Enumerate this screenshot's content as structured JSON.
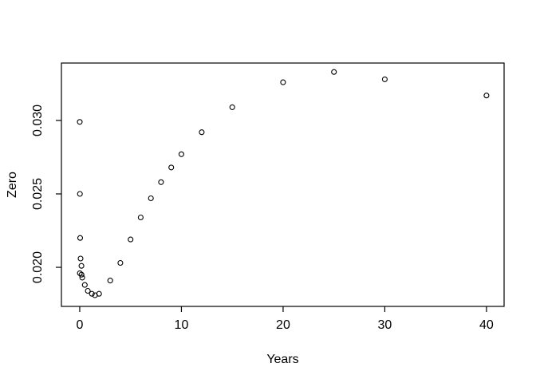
{
  "figure": {
    "background": "#ffffff",
    "foreground": "#000000"
  },
  "chart_data": {
    "type": "scatter",
    "title": "",
    "xlabel": "Years",
    "ylabel": "Zero",
    "marker": "open-circle",
    "grid": false,
    "legend": null,
    "xlim": [
      -1.8,
      41.73
    ],
    "ylim": [
      0.01734,
      0.03391
    ],
    "x_ticks": [
      0,
      10,
      20,
      30,
      40
    ],
    "x_tick_labels": [
      "0",
      "10",
      "20",
      "30",
      "40"
    ],
    "y_ticks": [
      0.02,
      0.025,
      0.03
    ],
    "y_tick_labels": [
      "0.020",
      "0.025",
      "0.030"
    ],
    "points": [
      [
        0.003,
        0.0299
      ],
      [
        0.02,
        0.025
      ],
      [
        0.04,
        0.022
      ],
      [
        0.08,
        0.0206
      ],
      [
        0.17,
        0.0201
      ],
      [
        0.01,
        0.0196
      ],
      [
        0.18,
        0.0195
      ],
      [
        0.25,
        0.0193
      ],
      [
        0.5,
        0.0188
      ],
      [
        0.8,
        0.0184
      ],
      [
        1.2,
        0.0182
      ],
      [
        1.5,
        0.0181
      ],
      [
        1.9,
        0.0182
      ],
      [
        3,
        0.0191
      ],
      [
        4,
        0.0203
      ],
      [
        5,
        0.0219
      ],
      [
        6,
        0.0234
      ],
      [
        7,
        0.0247
      ],
      [
        8,
        0.0258
      ],
      [
        9,
        0.0268
      ],
      [
        10,
        0.0277
      ],
      [
        12,
        0.0292
      ],
      [
        15,
        0.0309
      ],
      [
        20,
        0.0326
      ],
      [
        25,
        0.0333
      ],
      [
        30,
        0.0328
      ],
      [
        40,
        0.0317
      ]
    ]
  }
}
